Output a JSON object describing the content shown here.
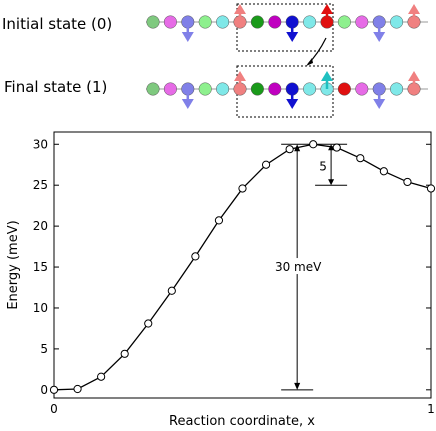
{
  "schematic": {
    "initial_label": "Initial state (0)",
    "final_label": "Final state (1)",
    "colors": {
      "green": "#7fc97f",
      "magenta": "#e66be6",
      "lightgreen": "#8ef08e",
      "cyan": "#7fe8e8",
      "salmon": "#f08080",
      "darkgreen": "#1a9a1a",
      "darkmagenta": "#c000c0",
      "blue": "#1010d0",
      "red": "#e01010",
      "lavender": "#8080e8"
    },
    "initial_chain": [
      "green",
      "magenta",
      "lavender",
      "lightgreen",
      "cyan",
      "salmon",
      "darkgreen",
      "darkmagenta",
      "blue",
      "cyan",
      "red",
      "lightgreen",
      "magenta",
      "lavender",
      "cyan",
      "salmon"
    ],
    "final_chain": [
      "green",
      "magenta",
      "lavender",
      "lightgreen",
      "cyan",
      "salmon",
      "darkgreen",
      "darkmagenta",
      "blue",
      "cyan",
      "cyan",
      "red",
      "magenta",
      "lavender",
      "cyan",
      "salmon"
    ]
  },
  "chart_data": {
    "type": "line",
    "xlabel": "Reaction coordinate, x",
    "ylabel": "Energy (meV)",
    "xlim": [
      0,
      1
    ],
    "ylim": [
      -1,
      31.5
    ],
    "xticks": [
      0,
      1
    ],
    "yticks": [
      0,
      5,
      10,
      15,
      20,
      25,
      30
    ],
    "x": [
      0,
      0.0625,
      0.125,
      0.1875,
      0.25,
      0.3125,
      0.375,
      0.4375,
      0.5,
      0.5625,
      0.625,
      0.6875,
      0.75,
      0.8125,
      0.875,
      0.9375,
      1.0
    ],
    "y": [
      0,
      0.1,
      1.6,
      4.4,
      8.1,
      12.1,
      16.3,
      20.7,
      24.6,
      27.5,
      29.4,
      30.0,
      29.6,
      28.3,
      26.7,
      25.4,
      24.6
    ],
    "annotations": [
      {
        "text": "30 meV",
        "from": 0,
        "to": 30
      },
      {
        "text": "5",
        "from": 25,
        "to": 30
      }
    ],
    "grid": false
  }
}
